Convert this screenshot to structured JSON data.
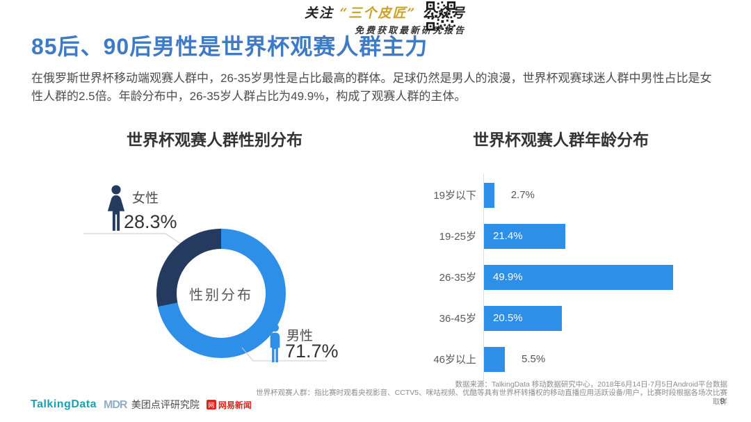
{
  "page": {
    "title": "85后、90后男性是世界杯观赛人群主力",
    "intro": "在俄罗斯世界杯移动端观赛人群中，26-35岁男性是占比最高的群体。足球仍然是男人的浪漫，世界杯观赛球迷人群中男性占比是女性人群的2.5倍。年龄分布中，26-35岁人群占比为49.9%，构成了观赛人群的主体。",
    "page_number": "9"
  },
  "banner": {
    "line1_prefix": "关注",
    "line1_brand": "“三个皮匠”",
    "line1_suffix": "公众号",
    "line2": "免费获取最新研究报告",
    "qr_icon": "qr-code"
  },
  "colors": {
    "title_blue": "#3e7bc7",
    "bar_blue": "#2e8fe8",
    "navy": "#243a5e",
    "brand_gold": "#c9a227",
    "talkingdata_teal": "#14a3b4",
    "netease_red": "#e2231a"
  },
  "chart_data": [
    {
      "type": "pie",
      "subtype": "donut",
      "title": "世界杯观赛人群性别分布",
      "center_label": "性别分布",
      "legend_position": "callouts",
      "slices": [
        {
          "label": "男性",
          "value": 71.7,
          "display": "71.7%",
          "color": "#2e8fe8",
          "icon": "male-icon"
        },
        {
          "label": "女性",
          "value": 28.3,
          "display": "28.3%",
          "color": "#243a5e",
          "icon": "female-icon"
        }
      ]
    },
    {
      "type": "bar",
      "orientation": "horizontal",
      "title": "世界杯观赛人群年龄分布",
      "categories": [
        "19岁以下",
        "19-25岁",
        "26-35岁",
        "36-45岁",
        "46岁以上"
      ],
      "values": [
        2.7,
        21.4,
        49.9,
        20.5,
        5.5
      ],
      "unit": "%",
      "bar_color": "#2e8fe8",
      "xlim": [
        0,
        55
      ],
      "grid": false,
      "value_labels": [
        "2.7%",
        "21.4%",
        "49.9%",
        "20.5%",
        "5.5%"
      ]
    }
  ],
  "footer": {
    "logo_talkingdata": "TalkingData",
    "logo_mdr_mark": "MDR",
    "logo_mdr_name": "美团点评研究院",
    "netease_badge": "网",
    "logo_netease": "网易新闻",
    "source_line1": "数据来源：TalkingData 移动数据研究中心，2018年6月14日-7月5日Android平台数据",
    "source_line2": "世界杯观赛人群：指比赛时观看央视影音、CCTV5、咪咕视频、优酷等具有世界杯转播权的移动直播应用活跃设备/用户，比赛时段根据各场次比赛取样"
  }
}
